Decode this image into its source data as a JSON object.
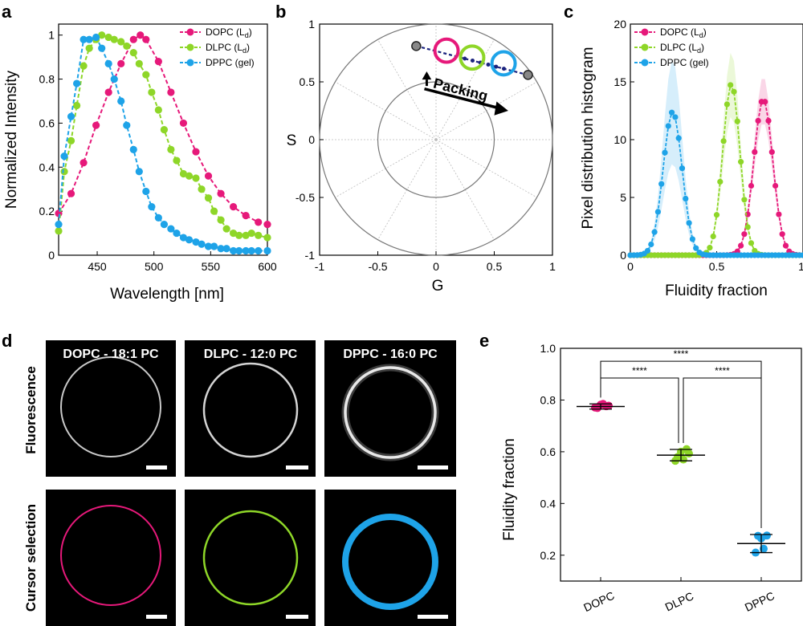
{
  "colors": {
    "dopc": "#e6197a",
    "dlpc": "#8ed628",
    "dppc": "#1ea3e8"
  },
  "chart_data": [
    {
      "panel": "a",
      "type": "line",
      "xlabel": "Wavelength [nm]",
      "ylabel": "Normalized Intensity",
      "xlim": [
        416,
        600
      ],
      "ylim": [
        0,
        1.05
      ],
      "xticks": [
        450,
        500,
        550,
        600
      ],
      "yticks": [
        0,
        0.2,
        0.4,
        0.6,
        0.8,
        1
      ],
      "series": [
        {
          "name": "DOPC (L",
          "sub": "d",
          "suffix": ")",
          "color": "#e6197a",
          "x": [
            416,
            427,
            438,
            449,
            460,
            471,
            482,
            488,
            493,
            504,
            515,
            526,
            537,
            548,
            559,
            570,
            581,
            592,
            600
          ],
          "y": [
            0.19,
            0.28,
            0.42,
            0.59,
            0.74,
            0.87,
            0.98,
            1.0,
            0.98,
            0.88,
            0.74,
            0.6,
            0.47,
            0.36,
            0.28,
            0.22,
            0.18,
            0.15,
            0.14
          ]
        },
        {
          "name": "DLPC (L",
          "sub": "d",
          "suffix": ")",
          "color": "#8ed628",
          "x": [
            416,
            421,
            427,
            432,
            438,
            443,
            449,
            454,
            460,
            465,
            471,
            476,
            482,
            487,
            493,
            498,
            504,
            509,
            515,
            520,
            526,
            531,
            537,
            542,
            548,
            553,
            559,
            564,
            570,
            575,
            581,
            586,
            592,
            600
          ],
          "y": [
            0.11,
            0.38,
            0.52,
            0.68,
            0.86,
            0.94,
            0.98,
            1.0,
            0.99,
            0.98,
            0.97,
            0.95,
            0.92,
            0.87,
            0.82,
            0.74,
            0.66,
            0.57,
            0.48,
            0.43,
            0.37,
            0.36,
            0.35,
            0.3,
            0.26,
            0.2,
            0.16,
            0.12,
            0.1,
            0.09,
            0.09,
            0.1,
            0.09,
            0.08
          ]
        },
        {
          "name": "DPPC (gel)",
          "sub": "",
          "suffix": "",
          "color": "#1ea3e8",
          "x": [
            416,
            421,
            427,
            432,
            438,
            443,
            449,
            454,
            460,
            465,
            471,
            476,
            482,
            487,
            493,
            498,
            504,
            509,
            515,
            520,
            526,
            531,
            537,
            542,
            548,
            553,
            559,
            564,
            570,
            575,
            581,
            586,
            592,
            600
          ],
          "y": [
            0.14,
            0.45,
            0.63,
            0.78,
            0.98,
            0.98,
            0.99,
            0.94,
            0.87,
            0.8,
            0.7,
            0.59,
            0.48,
            0.38,
            0.29,
            0.22,
            0.17,
            0.14,
            0.12,
            0.1,
            0.08,
            0.07,
            0.06,
            0.05,
            0.04,
            0.04,
            0.03,
            0.03,
            0.02,
            0.02,
            0.02,
            0.02,
            0.02,
            0.02
          ]
        }
      ]
    },
    {
      "panel": "b",
      "type": "scatter",
      "xlabel": "G",
      "ylabel": "S",
      "xlim": [
        -1,
        1
      ],
      "ylim": [
        -1,
        1
      ],
      "xticks": [
        -1,
        -0.5,
        0,
        0.5,
        1
      ],
      "yticks": [
        -1,
        -0.5,
        0,
        0.5,
        1
      ],
      "annotation": "Packing",
      "endpoints": [
        {
          "g": -0.17,
          "s": 0.81
        },
        {
          "g": 0.79,
          "s": 0.56
        }
      ],
      "clusters": [
        {
          "name": "DOPC",
          "color": "#e6197a",
          "g": 0.09,
          "s": 0.77,
          "r": 0.1
        },
        {
          "name": "DLPC",
          "color": "#8ed628",
          "g": 0.31,
          "s": 0.71,
          "r": 0.1
        },
        {
          "name": "DPPC",
          "color": "#1ea3e8",
          "g": 0.58,
          "s": 0.66,
          "r": 0.1
        }
      ]
    },
    {
      "panel": "c",
      "type": "line",
      "xlabel": "Fluidity fraction",
      "ylabel": "Pixel distribution histogram",
      "xlim": [
        0,
        1
      ],
      "ylim": [
        0,
        20
      ],
      "xticks": [
        0,
        0.5,
        1
      ],
      "yticks": [
        0,
        5,
        10,
        15,
        20
      ],
      "series": [
        {
          "name": "DOPC (L",
          "sub": "d",
          "suffix": ")",
          "color": "#e6197a",
          "mu": 0.77,
          "sigma": 0.055,
          "peak": 13.5,
          "band": 2.0
        },
        {
          "name": "DLPC (L",
          "sub": "d",
          "suffix": ")",
          "color": "#8ed628",
          "mu": 0.585,
          "sigma": 0.05,
          "peak": 14.8,
          "band": 2.8
        },
        {
          "name": "DPPC (gel)",
          "sub": "",
          "suffix": "",
          "color": "#1ea3e8",
          "mu": 0.245,
          "sigma": 0.055,
          "peak": 12.4,
          "band": 4.5
        }
      ]
    },
    {
      "panel": "e",
      "type": "scatter",
      "xlabel": "",
      "ylabel": "Fluidity fraction",
      "ylim": [
        0.1,
        1.0
      ],
      "yticks": [
        0.2,
        0.4,
        0.6,
        0.8,
        1.0
      ],
      "categories": [
        "DOPC",
        "DLPC",
        "DPPC"
      ],
      "groups": [
        {
          "name": "DOPC",
          "color": "#e6197a",
          "mean": 0.775,
          "err": 0.01,
          "points": [
            0.771,
            0.782,
            0.776,
            0.769,
            0.785,
            0.778
          ]
        },
        {
          "name": "DLPC",
          "color": "#8ed628",
          "mean": 0.587,
          "err": 0.022,
          "points": [
            0.565,
            0.6,
            0.61,
            0.58,
            0.57,
            0.593
          ]
        },
        {
          "name": "DPPC",
          "color": "#1ea3e8",
          "mean": 0.245,
          "err": 0.035,
          "points": [
            0.21,
            0.265,
            0.276,
            0.275,
            0.225
          ]
        }
      ],
      "brackets": [
        {
          "from": 0,
          "to": 2,
          "label": "****",
          "y": 0.95
        },
        {
          "from": 0,
          "to": 1,
          "label": "****",
          "y": 0.885
        },
        {
          "from": 1,
          "to": 2,
          "label": "****",
          "y": 0.885
        }
      ]
    }
  ],
  "panel_labels": {
    "a": "a",
    "b": "b",
    "c": "c",
    "d": "d",
    "e": "e"
  },
  "panel_d": {
    "columns": [
      "DOPC - 18:1 PC",
      "DLPC - 12:0 PC",
      "DPPC - 16:0 PC"
    ],
    "rows": [
      "Fluorescence",
      "Cursor selection"
    ]
  }
}
